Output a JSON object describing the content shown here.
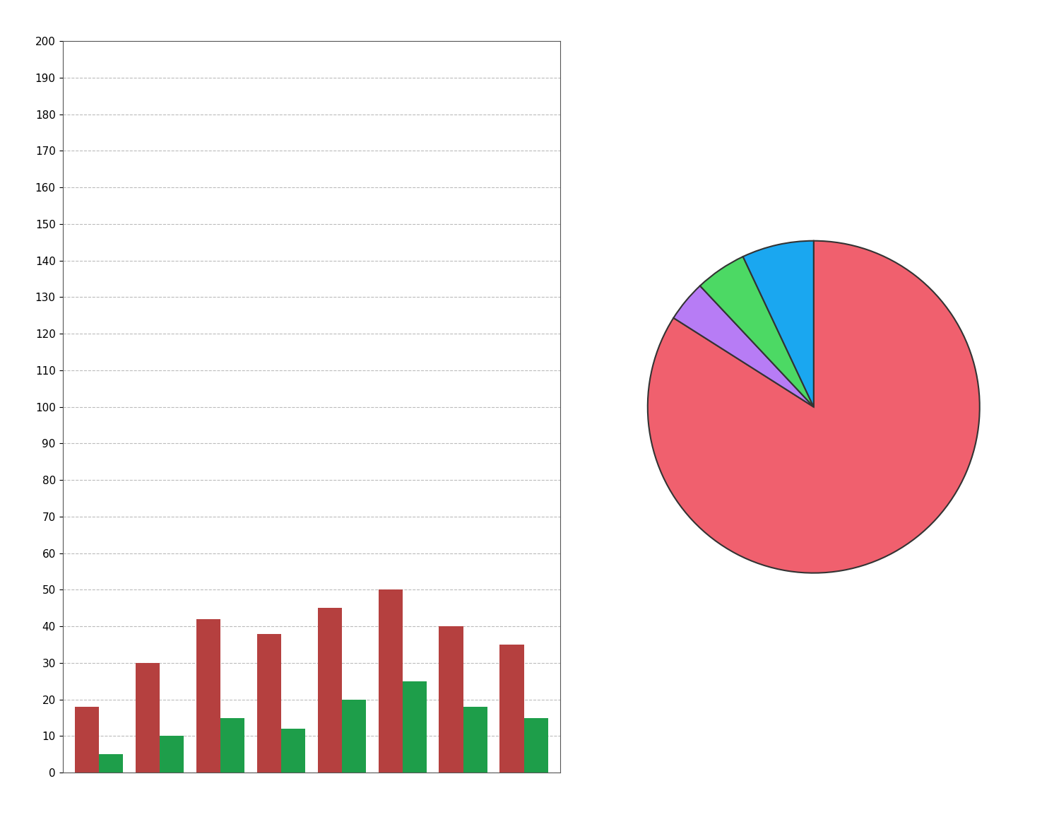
{
  "chart_data": [
    {
      "type": "bar",
      "categories": [
        null,
        null,
        null,
        null,
        null,
        null,
        null,
        null
      ],
      "series": [
        {
          "color": "#b5403f",
          "values": [
            18,
            30,
            42,
            38,
            45,
            50,
            40,
            35
          ]
        },
        {
          "color": "#1e9e4a",
          "values": [
            5,
            10,
            15,
            12,
            20,
            25,
            18,
            15
          ]
        }
      ],
      "ylim": [
        0,
        200
      ],
      "yticks": [
        0,
        10,
        20,
        30,
        40,
        50,
        60,
        70,
        80,
        90,
        100,
        110,
        120,
        130,
        140,
        150,
        160,
        170,
        180,
        190,
        200
      ],
      "grid": true,
      "tick_labels": "y"
    },
    {
      "type": "pie",
      "values": [
        84,
        4,
        5,
        7
      ],
      "colors": [
        "#f0606e",
        "#b77cf5",
        "#4cd964",
        "#1aa7f0"
      ]
    }
  ]
}
